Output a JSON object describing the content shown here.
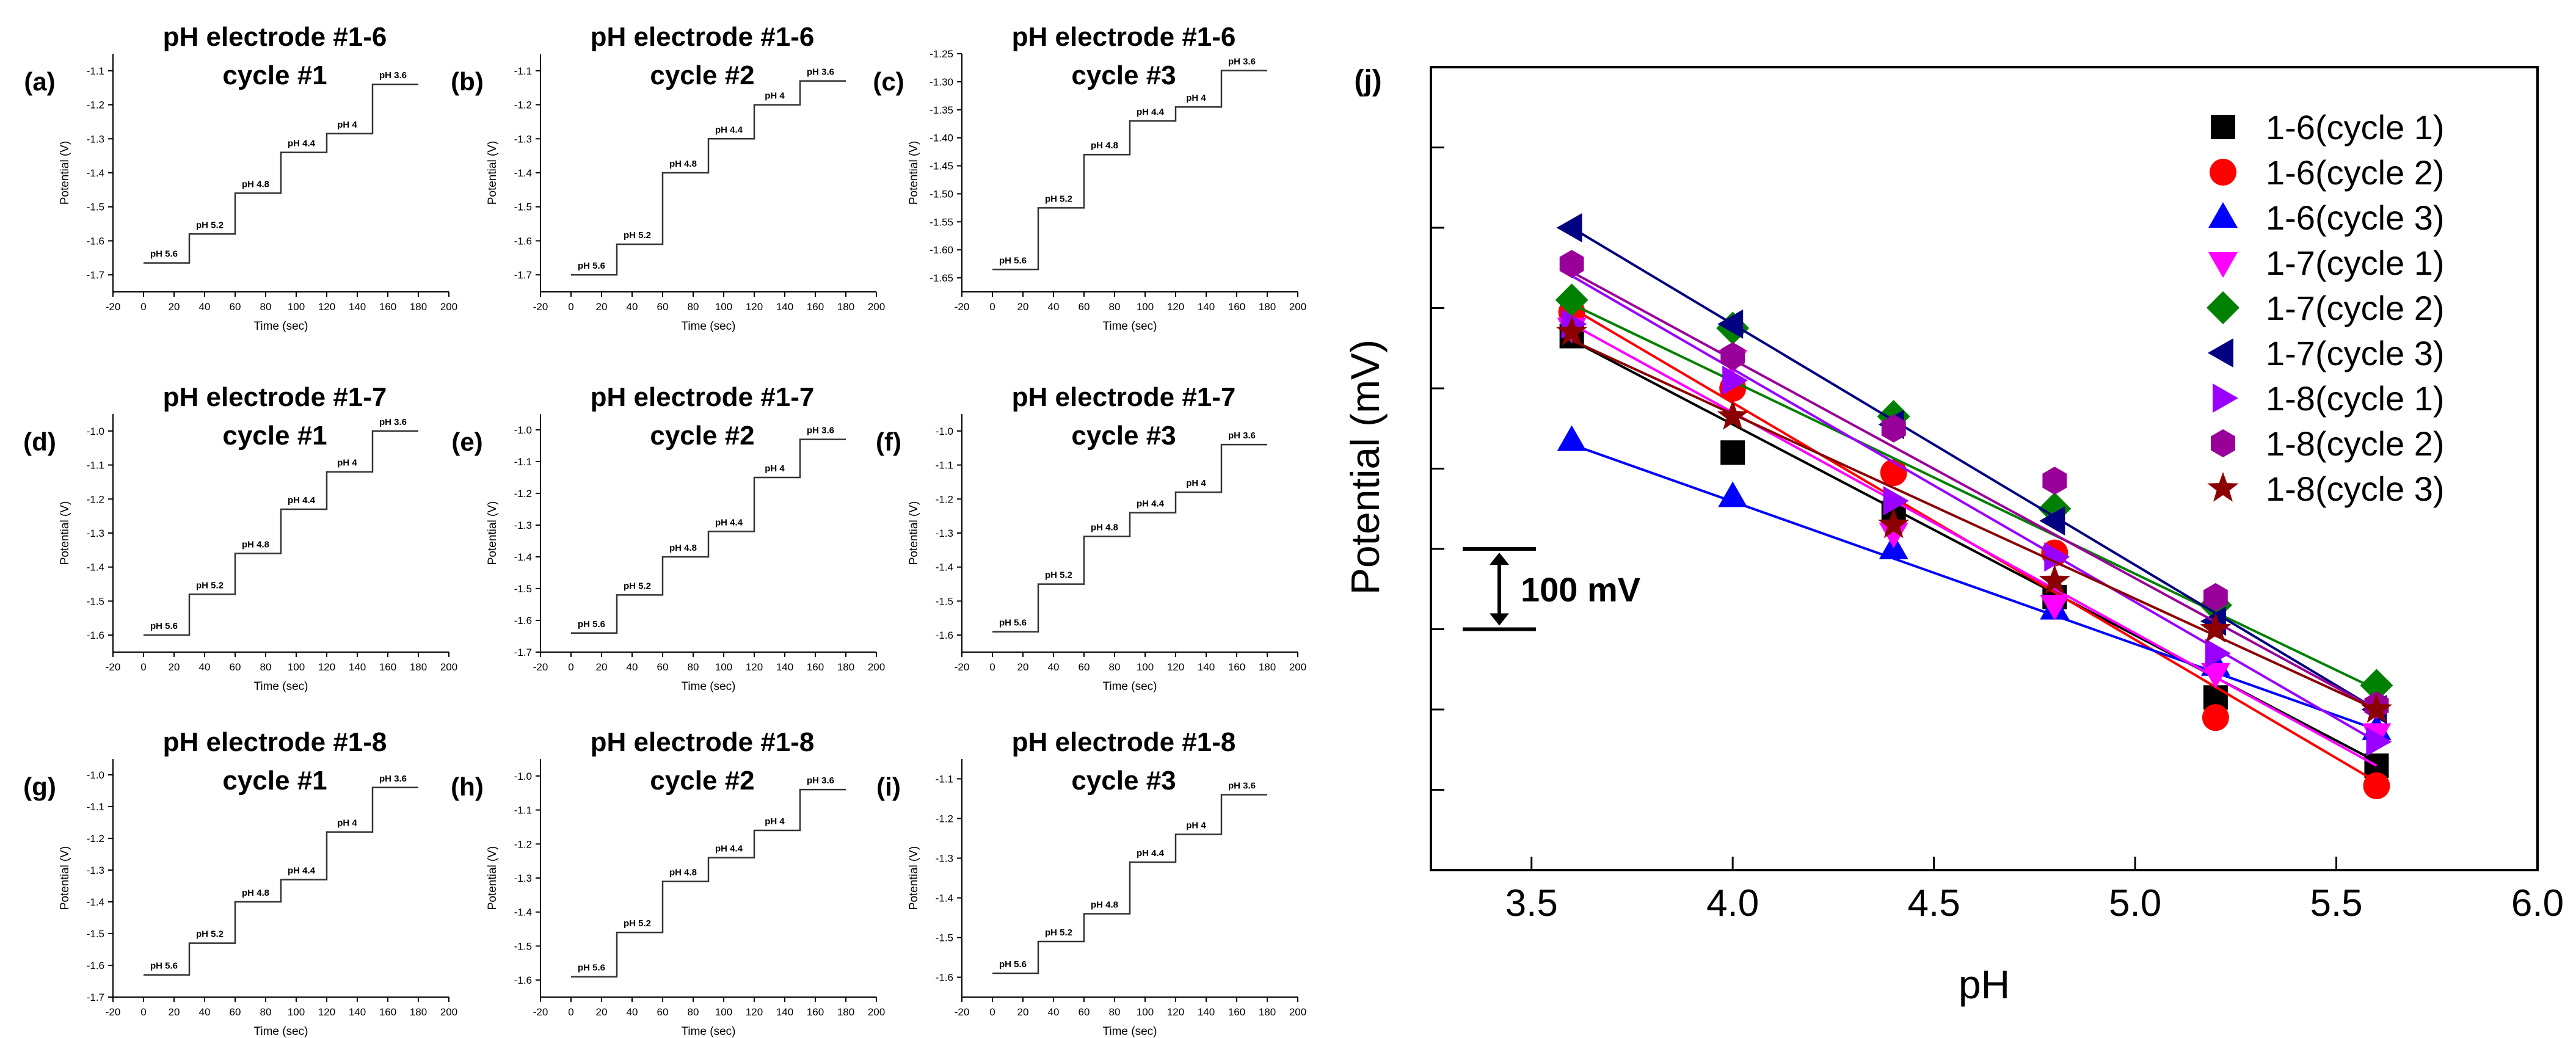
{
  "figure": {
    "small_xlabel": "Time (sec)",
    "small_ylabel": "Potential (V)",
    "small_xticks": [
      "-20",
      "0",
      "20",
      "40",
      "60",
      "80",
      "100",
      "120",
      "140",
      "160",
      "180",
      "200"
    ]
  },
  "chart_data": [
    {
      "panel": "(a)",
      "type": "line",
      "title": "pH electrode #1-6",
      "subtitle": "cycle #1",
      "xlabel": "Time (sec)",
      "ylabel": "Potential (V)",
      "xlim": [
        -20,
        200
      ],
      "ylim": [
        -1.75,
        -1.05
      ],
      "yticks": [
        "-1.1",
        "-1.2",
        "-1.3",
        "-1.4",
        "-1.5",
        "-1.6",
        "-1.7"
      ],
      "steps": [
        {
          "label": "pH 5.6",
          "t0": 0,
          "t1": 30,
          "v": -1.665
        },
        {
          "label": "pH 5.2",
          "t0": 30,
          "t1": 60,
          "v": -1.58
        },
        {
          "label": "pH 4.8",
          "t0": 60,
          "t1": 90,
          "v": -1.46
        },
        {
          "label": "pH 4.4",
          "t0": 90,
          "t1": 120,
          "v": -1.34
        },
        {
          "label": "pH 4",
          "t0": 120,
          "t1": 150,
          "v": -1.285
        },
        {
          "label": "pH 3.6",
          "t0": 150,
          "t1": 180,
          "v": -1.14
        }
      ]
    },
    {
      "panel": "(b)",
      "type": "line",
      "title": "pH electrode #1-6",
      "subtitle": "cycle #2",
      "xlabel": "Time (sec)",
      "ylabel": "Potential (V)",
      "xlim": [
        -20,
        200
      ],
      "ylim": [
        -1.75,
        -1.05
      ],
      "yticks": [
        "-1.1",
        "-1.2",
        "-1.3",
        "-1.4",
        "-1.5",
        "-1.6",
        "-1.7"
      ],
      "steps": [
        {
          "label": "pH 5.6",
          "t0": 0,
          "t1": 30,
          "v": -1.7
        },
        {
          "label": "pH 5.2",
          "t0": 30,
          "t1": 60,
          "v": -1.61
        },
        {
          "label": "pH 4.8",
          "t0": 60,
          "t1": 90,
          "v": -1.4
        },
        {
          "label": "pH 4.4",
          "t0": 90,
          "t1": 120,
          "v": -1.3
        },
        {
          "label": "pH 4",
          "t0": 120,
          "t1": 150,
          "v": -1.2
        },
        {
          "label": "pH 3.6",
          "t0": 150,
          "t1": 180,
          "v": -1.13
        }
      ]
    },
    {
      "panel": "(c)",
      "type": "line",
      "title": "pH electrode #1-6",
      "subtitle": "cycle #3",
      "xlabel": "Time (sec)",
      "ylabel": "Potential (V)",
      "xlim": [
        -20,
        200
      ],
      "ylim": [
        -1.675,
        -1.25
      ],
      "yticks": [
        "-1.25",
        "-1.30",
        "-1.35",
        "-1.40",
        "-1.45",
        "-1.50",
        "-1.55",
        "-1.60",
        "-1.65"
      ],
      "steps": [
        {
          "label": "pH 5.6",
          "t0": 0,
          "t1": 30,
          "v": -1.635
        },
        {
          "label": "pH 5.2",
          "t0": 30,
          "t1": 60,
          "v": -1.525
        },
        {
          "label": "pH 4.8",
          "t0": 60,
          "t1": 90,
          "v": -1.43
        },
        {
          "label": "pH 4.4",
          "t0": 90,
          "t1": 120,
          "v": -1.37
        },
        {
          "label": "pH 4",
          "t0": 120,
          "t1": 150,
          "v": -1.345
        },
        {
          "label": "pH 3.6",
          "t0": 150,
          "t1": 180,
          "v": -1.28
        }
      ]
    },
    {
      "panel": "(d)",
      "type": "line",
      "title": "pH electrode #1-7",
      "subtitle": "cycle #1",
      "xlabel": "Time (sec)",
      "ylabel": "Potential (V)",
      "xlim": [
        -20,
        200
      ],
      "ylim": [
        -1.65,
        -0.95
      ],
      "yticks": [
        "-1.0",
        "-1.1",
        "-1.2",
        "-1.3",
        "-1.4",
        "-1.5",
        "-1.6"
      ],
      "steps": [
        {
          "label": "pH 5.6",
          "t0": 0,
          "t1": 30,
          "v": -1.6
        },
        {
          "label": "pH 5.2",
          "t0": 30,
          "t1": 60,
          "v": -1.48
        },
        {
          "label": "pH 4.8",
          "t0": 60,
          "t1": 90,
          "v": -1.36
        },
        {
          "label": "pH 4.4",
          "t0": 90,
          "t1": 120,
          "v": -1.23
        },
        {
          "label": "pH 4",
          "t0": 120,
          "t1": 150,
          "v": -1.12
        },
        {
          "label": "pH 3.6",
          "t0": 150,
          "t1": 180,
          "v": -1.0
        }
      ]
    },
    {
      "panel": "(e)",
      "type": "line",
      "title": "pH electrode #1-7",
      "subtitle": "cycle #2",
      "xlabel": "Time (sec)",
      "ylabel": "Potential (V)",
      "xlim": [
        -20,
        200
      ],
      "ylim": [
        -1.7,
        -0.95
      ],
      "yticks": [
        "-1.0",
        "-1.1",
        "-1.2",
        "-1.3",
        "-1.4",
        "-1.5",
        "-1.6",
        "-1.7"
      ],
      "steps": [
        {
          "label": "pH 5.6",
          "t0": 0,
          "t1": 30,
          "v": -1.64
        },
        {
          "label": "pH 5.2",
          "t0": 30,
          "t1": 60,
          "v": -1.52
        },
        {
          "label": "pH 4.8",
          "t0": 60,
          "t1": 90,
          "v": -1.4
        },
        {
          "label": "pH 4.4",
          "t0": 90,
          "t1": 120,
          "v": -1.32
        },
        {
          "label": "pH 4",
          "t0": 120,
          "t1": 150,
          "v": -1.15
        },
        {
          "label": "pH 3.6",
          "t0": 150,
          "t1": 180,
          "v": -1.03
        }
      ]
    },
    {
      "panel": "(f)",
      "type": "line",
      "title": "pH electrode #1-7",
      "subtitle": "cycle #3",
      "xlabel": "Time (sec)",
      "ylabel": "Potential (V)",
      "xlim": [
        -20,
        200
      ],
      "ylim": [
        -1.65,
        -0.95
      ],
      "yticks": [
        "-1.0",
        "-1.1",
        "-1.2",
        "-1.3",
        "-1.4",
        "-1.5",
        "-1.6"
      ],
      "steps": [
        {
          "label": "pH 5.6",
          "t0": 0,
          "t1": 30,
          "v": -1.59
        },
        {
          "label": "pH 5.2",
          "t0": 30,
          "t1": 60,
          "v": -1.45
        },
        {
          "label": "pH 4.8",
          "t0": 60,
          "t1": 90,
          "v": -1.31
        },
        {
          "label": "pH 4.4",
          "t0": 90,
          "t1": 120,
          "v": -1.24
        },
        {
          "label": "pH 4",
          "t0": 120,
          "t1": 150,
          "v": -1.18
        },
        {
          "label": "pH 3.6",
          "t0": 150,
          "t1": 180,
          "v": -1.04
        }
      ]
    },
    {
      "panel": "(g)",
      "type": "line",
      "title": "pH electrode #1-8",
      "subtitle": "cycle #1",
      "xlabel": "Time (sec)",
      "ylabel": "Potential (V)",
      "xlim": [
        -20,
        200
      ],
      "ylim": [
        -1.7,
        -0.95
      ],
      "yticks": [
        "-1.0",
        "-1.1",
        "-1.2",
        "-1.3",
        "-1.4",
        "-1.5",
        "-1.6",
        "-1.7"
      ],
      "steps": [
        {
          "label": "pH 5.6",
          "t0": 0,
          "t1": 30,
          "v": -1.63
        },
        {
          "label": "pH 5.2",
          "t0": 30,
          "t1": 60,
          "v": -1.53
        },
        {
          "label": "pH 4.8",
          "t0": 60,
          "t1": 90,
          "v": -1.4
        },
        {
          "label": "pH 4.4",
          "t0": 90,
          "t1": 120,
          "v": -1.33
        },
        {
          "label": "pH 4",
          "t0": 120,
          "t1": 150,
          "v": -1.18
        },
        {
          "label": "pH 3.6",
          "t0": 150,
          "t1": 180,
          "v": -1.04
        }
      ]
    },
    {
      "panel": "(h)",
      "type": "line",
      "title": "pH electrode #1-8",
      "subtitle": "cycle #2",
      "xlabel": "Time (sec)",
      "ylabel": "Potential (V)",
      "xlim": [
        -20,
        200
      ],
      "ylim": [
        -1.65,
        -0.95
      ],
      "yticks": [
        "-1.0",
        "-1.1",
        "-1.2",
        "-1.3",
        "-1.4",
        "-1.5",
        "-1.6"
      ],
      "steps": [
        {
          "label": "pH 5.6",
          "t0": 0,
          "t1": 30,
          "v": -1.59
        },
        {
          "label": "pH 5.2",
          "t0": 30,
          "t1": 60,
          "v": -1.46
        },
        {
          "label": "pH 4.8",
          "t0": 60,
          "t1": 90,
          "v": -1.31
        },
        {
          "label": "pH 4.4",
          "t0": 90,
          "t1": 120,
          "v": -1.24
        },
        {
          "label": "pH 4",
          "t0": 120,
          "t1": 150,
          "v": -1.16
        },
        {
          "label": "pH 3.6",
          "t0": 150,
          "t1": 180,
          "v": -1.04
        }
      ]
    },
    {
      "panel": "(i)",
      "type": "line",
      "title": "pH electrode #1-8",
      "subtitle": "cycle #3",
      "xlabel": "Time (sec)",
      "ylabel": "Potential (V)",
      "xlim": [
        -20,
        200
      ],
      "ylim": [
        -1.65,
        -1.05
      ],
      "yticks": [
        "-1.1",
        "-1.2",
        "-1.3",
        "-1.4",
        "-1.5",
        "-1.6"
      ],
      "steps": [
        {
          "label": "pH 5.6",
          "t0": 0,
          "t1": 30,
          "v": -1.59
        },
        {
          "label": "pH 5.2",
          "t0": 30,
          "t1": 60,
          "v": -1.51
        },
        {
          "label": "pH 4.8",
          "t0": 60,
          "t1": 90,
          "v": -1.44
        },
        {
          "label": "pH 4.4",
          "t0": 90,
          "t1": 120,
          "v": -1.31
        },
        {
          "label": "pH 4",
          "t0": 120,
          "t1": 150,
          "v": -1.24
        },
        {
          "label": "pH 3.6",
          "t0": 150,
          "t1": 180,
          "v": -1.14
        }
      ]
    },
    {
      "panel": "(j)",
      "type": "scatter",
      "xlabel": "pH",
      "ylabel": "Potential (mV)",
      "xlim": [
        3.25,
        6.0
      ],
      "ylim": [
        0,
        10
      ],
      "xticks": [
        "3.5",
        "4.0",
        "4.5",
        "5.0",
        "5.5",
        "6.0"
      ],
      "xtick_values": [
        3.5,
        4.0,
        4.5,
        5.0,
        5.5,
        6.0
      ],
      "ytick_count": 9,
      "scalebar_label": "100 mV",
      "x": [
        3.6,
        4.0,
        4.4,
        4.8,
        5.2,
        5.6
      ],
      "series": [
        {
          "name": "1-6(cycle 1)",
          "color": "#000000",
          "marker": "square",
          "values": [
            6.65,
            5.2,
            4.45,
            3.4,
            2.15,
            1.3
          ],
          "fit": [
            6.6,
            1.35
          ]
        },
        {
          "name": "1-6(cycle 2)",
          "color": "#ff0000",
          "marker": "circle",
          "values": [
            6.95,
            6.0,
            4.95,
            3.95,
            1.9,
            1.05
          ],
          "fit": [
            7.0,
            1.1
          ]
        },
        {
          "name": "1-6(cycle 3)",
          "color": "#0000ff",
          "marker": "triangle-up",
          "values": [
            5.35,
            4.65,
            4.0,
            3.25,
            2.55,
            1.75
          ],
          "fit": [
            5.3,
            1.75
          ]
        },
        {
          "name": "1-7(cycle 1)",
          "color": "#ff00ff",
          "marker": "triangle-down",
          "values": [
            6.75,
            6.35,
            4.2,
            3.3,
            2.45,
            1.7
          ],
          "fit": [
            6.8,
            1.3
          ]
        },
        {
          "name": "1-7(cycle 2)",
          "color": "#008000",
          "marker": "diamond",
          "values": [
            7.1,
            6.75,
            5.65,
            4.5,
            3.3,
            2.3
          ],
          "fit": [
            7.05,
            2.25
          ]
        },
        {
          "name": "1-7(cycle 3)",
          "color": "#000080",
          "marker": "triangle-left",
          "values": [
            8.0,
            6.8,
            5.55,
            4.35,
            3.1,
            2.0
          ],
          "fit": [
            8.0,
            2.0
          ]
        },
        {
          "name": "1-8(cycle 1)",
          "color": "#9900ff",
          "marker": "triangle-right",
          "values": [
            6.8,
            6.1,
            4.6,
            3.9,
            2.7,
            1.6
          ],
          "fit": [
            7.4,
            1.6
          ]
        },
        {
          "name": "1-8(cycle 2)",
          "color": "#990099",
          "marker": "hexagon",
          "values": [
            7.55,
            6.4,
            5.5,
            4.85,
            3.4,
            2.05
          ],
          "fit": [
            7.45,
            2.0
          ]
        },
        {
          "name": "1-8(cycle 3)",
          "color": "#8b0000",
          "marker": "star",
          "values": [
            6.7,
            5.65,
            4.3,
            3.6,
            3.0,
            2.0
          ],
          "fit": [
            6.6,
            2.0
          ]
        }
      ]
    }
  ]
}
